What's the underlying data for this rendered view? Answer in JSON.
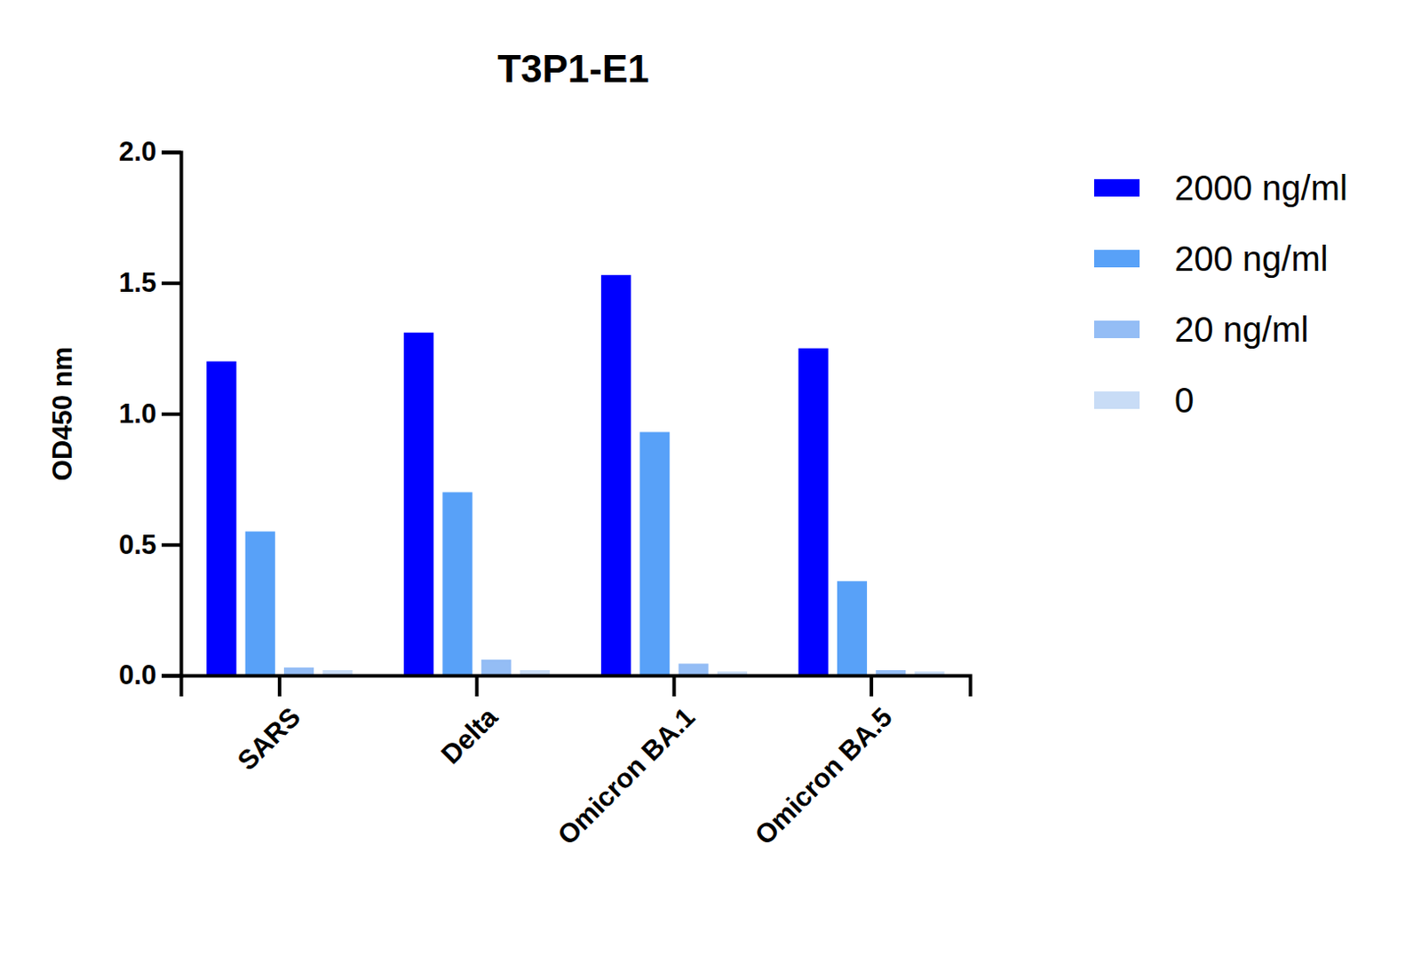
{
  "chart_data": {
    "type": "bar",
    "title": "T3P1-E1",
    "y_label": "OD450 nm",
    "categories": [
      "SARS",
      "Delta",
      "Omicron BA.1",
      "Omicron BA.5"
    ],
    "series": [
      {
        "name": "2000 ng/ml",
        "color": "#0000ff",
        "values": [
          1.2,
          1.31,
          1.53,
          1.25
        ]
      },
      {
        "name": "200 ng/ml",
        "color": "#58a1f8",
        "values": [
          0.55,
          0.7,
          0.93,
          0.36
        ]
      },
      {
        "name": "20 ng/ml",
        "color": "#94bdf5",
        "values": [
          0.03,
          0.06,
          0.045,
          0.02
        ]
      },
      {
        "name": "0",
        "color": "#c8dcf6",
        "values": [
          0.02,
          0.02,
          0.015,
          0.015
        ]
      }
    ],
    "ylim": [
      0,
      2
    ],
    "yticks": [
      {
        "value": 0,
        "label": "0.0"
      },
      0.5,
      {
        "value": 1,
        "label": "1.0"
      },
      1.5,
      {
        "value": 2,
        "label": "2.0"
      }
    ],
    "legend": "right",
    "grid": false
  }
}
